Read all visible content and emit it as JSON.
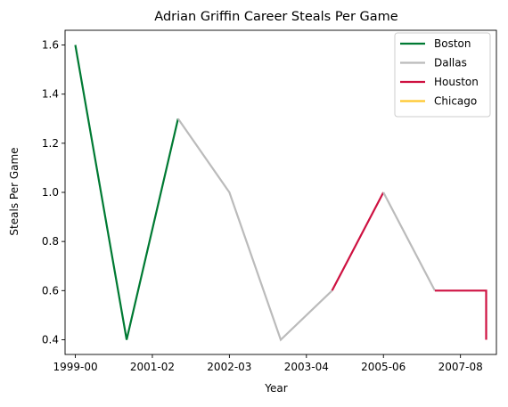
{
  "chart_data": {
    "type": "line",
    "title": "Adrian Griffin Career Steals Per Game",
    "xlabel": "Year",
    "ylabel": "Steals Per Game",
    "xlim": [
      -0.2,
      8.2
    ],
    "ylim": [
      0.34,
      1.66
    ],
    "x_ticks": [
      {
        "pos": 0,
        "label": "1999-00"
      },
      {
        "pos": 1.5,
        "label": "2001-02"
      },
      {
        "pos": 3,
        "label": "2002-03"
      },
      {
        "pos": 4.5,
        "label": "2003-04"
      },
      {
        "pos": 6,
        "label": "2005-06"
      },
      {
        "pos": 7.5,
        "label": "2007-08"
      }
    ],
    "y_ticks": [
      "0.4",
      "0.6",
      "0.8",
      "1.0",
      "1.2",
      "1.4",
      "1.6"
    ],
    "grid": false,
    "legend_position": "top-right",
    "series": [
      {
        "name": "Boston",
        "color": "#007a33",
        "points": [
          [
            0,
            1.6
          ],
          [
            1,
            0.4
          ],
          [
            2,
            1.3
          ]
        ]
      },
      {
        "name": "Dallas",
        "color": "#bbbbbb",
        "points": [
          [
            2,
            1.3
          ],
          [
            3,
            1.0
          ],
          [
            4,
            0.4
          ],
          [
            5,
            0.6
          ]
        ]
      },
      {
        "name": "Houston",
        "color": "#ce1141",
        "points": [
          [
            5,
            0.6
          ],
          [
            6,
            1.0
          ]
        ]
      },
      {
        "name": "Dallas",
        "color": "#bbbbbb",
        "points": [
          [
            6,
            1.0
          ],
          [
            7,
            0.6
          ]
        ]
      },
      {
        "name": "Houston",
        "color": "#ce1141",
        "points": [
          [
            7,
            0.6
          ],
          [
            8,
            0.6
          ],
          [
            8,
            0.4
          ]
        ]
      }
    ],
    "legend": [
      {
        "name": "Boston",
        "color": "#007a33"
      },
      {
        "name": "Dallas",
        "color": "#bbbbbb"
      },
      {
        "name": "Houston",
        "color": "#ce1141"
      },
      {
        "name": "Chicago",
        "color": "#ffc72c"
      }
    ]
  }
}
